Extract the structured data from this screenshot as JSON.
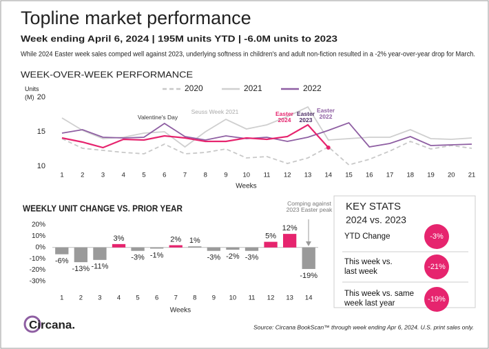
{
  "title": "Topline market performance",
  "subtitle": "Week ending April 6, 2024 | 195M units YTD | -6.0M units to 2023",
  "description": "While 2024 Easter week sales comped well against 2023, underlying softness in children's and adult non-fiction resulted in a -2% year-over-year drop for March.",
  "chart_data": [
    {
      "type": "line",
      "title": "WEEK-OVER-WEEK PERFORMANCE",
      "ylabel": "Units (M)",
      "xlabel": "Weeks",
      "x": [
        1,
        2,
        3,
        4,
        5,
        6,
        7,
        8,
        9,
        10,
        11,
        12,
        13,
        14,
        15,
        16,
        17,
        18,
        19,
        20,
        21
      ],
      "xlim": [
        1,
        21
      ],
      "xticks": [
        1,
        2,
        3,
        4,
        5,
        6,
        7,
        8,
        9,
        10,
        11,
        12,
        13,
        14,
        15,
        16,
        17,
        18,
        19,
        20,
        21
      ],
      "ylim": [
        10,
        20
      ],
      "yticks": [
        10,
        15,
        20
      ],
      "series": [
        {
          "name": "2020",
          "color": "#c8c8c8",
          "style": "dashed",
          "values": [
            14.0,
            12.6,
            12.3,
            12.0,
            11.8,
            13.2,
            11.8,
            12.0,
            12.5,
            11.2,
            11.4,
            10.4,
            11.2,
            12.8,
            10.2,
            11.0,
            12.2,
            13.6,
            12.5,
            13.0,
            12.6
          ]
        },
        {
          "name": "2021",
          "color": "#cfcfcf",
          "style": "solid",
          "values": [
            17.0,
            15.2,
            14.0,
            14.2,
            14.8,
            15.0,
            12.8,
            15.0,
            16.8,
            15.4,
            16.0,
            17.2,
            18.6,
            13.8,
            14.0,
            14.2,
            14.2,
            15.3,
            14.0,
            13.9,
            14.1
          ]
        },
        {
          "name": "2022",
          "color": "#8e5ea2",
          "style": "solid",
          "values": [
            14.8,
            15.3,
            14.2,
            14.1,
            14.2,
            16.2,
            14.3,
            13.8,
            14.4,
            14.0,
            14.2,
            13.6,
            14.2,
            15.2,
            16.3,
            12.8,
            13.3,
            14.3,
            13.0,
            13.1,
            13.2
          ]
        },
        {
          "color": "#e6246e",
          "style": "solid",
          "values": [
            14.1,
            13.5,
            12.7,
            13.9,
            13.8,
            14.4,
            14.1,
            13.6,
            13.6,
            14.1,
            13.9,
            14.3,
            16.0,
            12.7,
            null,
            null,
            null,
            null,
            null,
            null,
            null
          ]
        }
      ],
      "annotations": [
        {
          "text": "Valentine's Day",
          "color": "#333333"
        },
        {
          "text": "Seuss Week 2021",
          "color": "#aaaaaa"
        },
        {
          "text": "Easter 2024",
          "color": "#e6246e"
        },
        {
          "text": "Easter 2023",
          "color": "#4b2a63"
        },
        {
          "text": "Easter 2022",
          "color": "#8e5ea2"
        }
      ]
    },
    {
      "type": "bar",
      "title": "WEEKLY UNIT CHANGE VS. PRIOR YEAR",
      "xlabel": "Weeks",
      "categories": [
        "1",
        "2",
        "3",
        "4",
        "5",
        "6",
        "7",
        "8",
        "9",
        "10",
        "11",
        "12",
        "13",
        "14"
      ],
      "values": [
        -6,
        -13,
        -11,
        3,
        -3,
        -1,
        2,
        1,
        -3,
        -2,
        -3,
        5,
        12,
        -19
      ],
      "value_labels": [
        "-6%",
        "-13%",
        "-11%",
        "3%",
        "-3%",
        "-1%",
        "2%",
        "1%",
        "-3%",
        "-2%",
        "-3%",
        "5%",
        "12%",
        "-19%"
      ],
      "colors": [
        "#9a9a9a",
        "#9a9a9a",
        "#9a9a9a",
        "#e6246e",
        "#9a9a9a",
        "#9a9a9a",
        "#e6246e",
        "#9a9a9a",
        "#9a9a9a",
        "#9a9a9a",
        "#9a9a9a",
        "#e6246e",
        "#e6246e",
        "#9a9a9a"
      ],
      "ylim": [
        -30,
        20
      ],
      "yticks": [
        {
          "value": -30,
          "label": "-30%"
        },
        {
          "value": -20,
          "label": "-20%"
        },
        {
          "value": -10,
          "label": "-10%"
        },
        {
          "value": 0,
          "label": "0%"
        },
        {
          "value": 10,
          "label": "10%"
        },
        {
          "value": 20,
          "label": "20%"
        }
      ],
      "annotation": "Comping against 2023 Easter peak"
    }
  ],
  "key_stats": {
    "title": "KEY STATS",
    "subtitle": "2024 vs. 2023",
    "items": [
      {
        "label": "YTD Change",
        "value": "-3%"
      },
      {
        "label": "This week vs. last week",
        "value": "-21%"
      },
      {
        "label": "This week vs. same week last year",
        "value": "-19%"
      }
    ]
  },
  "logo": "Circana.",
  "source": "Source: Circana BookScan™ through week ending Apr 6, 2024. U.S. print sales only."
}
